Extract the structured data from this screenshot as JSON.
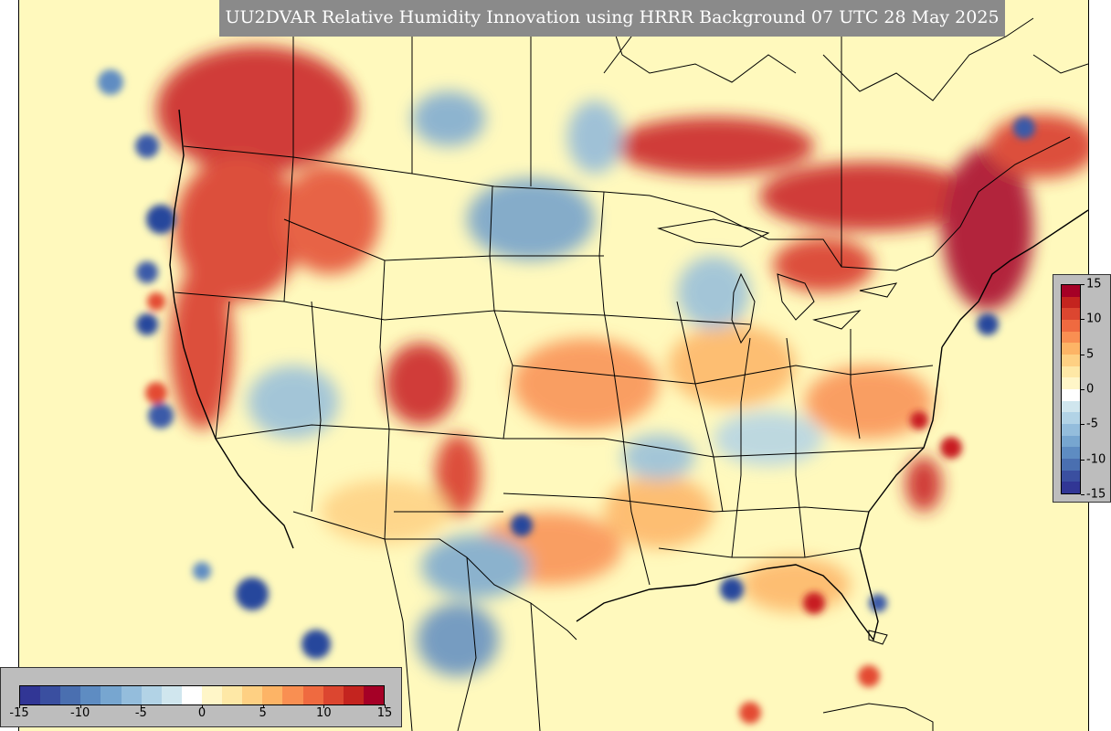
{
  "title": "UU2DVAR Relative Humidity Innovation using HRRR Background 07 UTC 28 May 2025",
  "colorbar": {
    "min": -15,
    "max": 15,
    "ticks": [
      "-15",
      "-10",
      "-5",
      "0",
      "5",
      "10",
      "15"
    ],
    "colors": [
      "#313695",
      "#3a4fa0",
      "#4a6fb0",
      "#5e8cc2",
      "#77a6d0",
      "#94bddc",
      "#b2d3e6",
      "#d0e6ee",
      "#ffffff",
      "#fff6c8",
      "#fee8a6",
      "#fed083",
      "#fdb466",
      "#f98f52",
      "#ef6a40",
      "#dc4630",
      "#c4241f",
      "#a50026"
    ]
  },
  "map": {
    "region": "CONUS",
    "background_color": "#fff9bd",
    "positive_color": "#b5101f",
    "negative_color": "#27479c",
    "boundary_color": "#000000"
  }
}
